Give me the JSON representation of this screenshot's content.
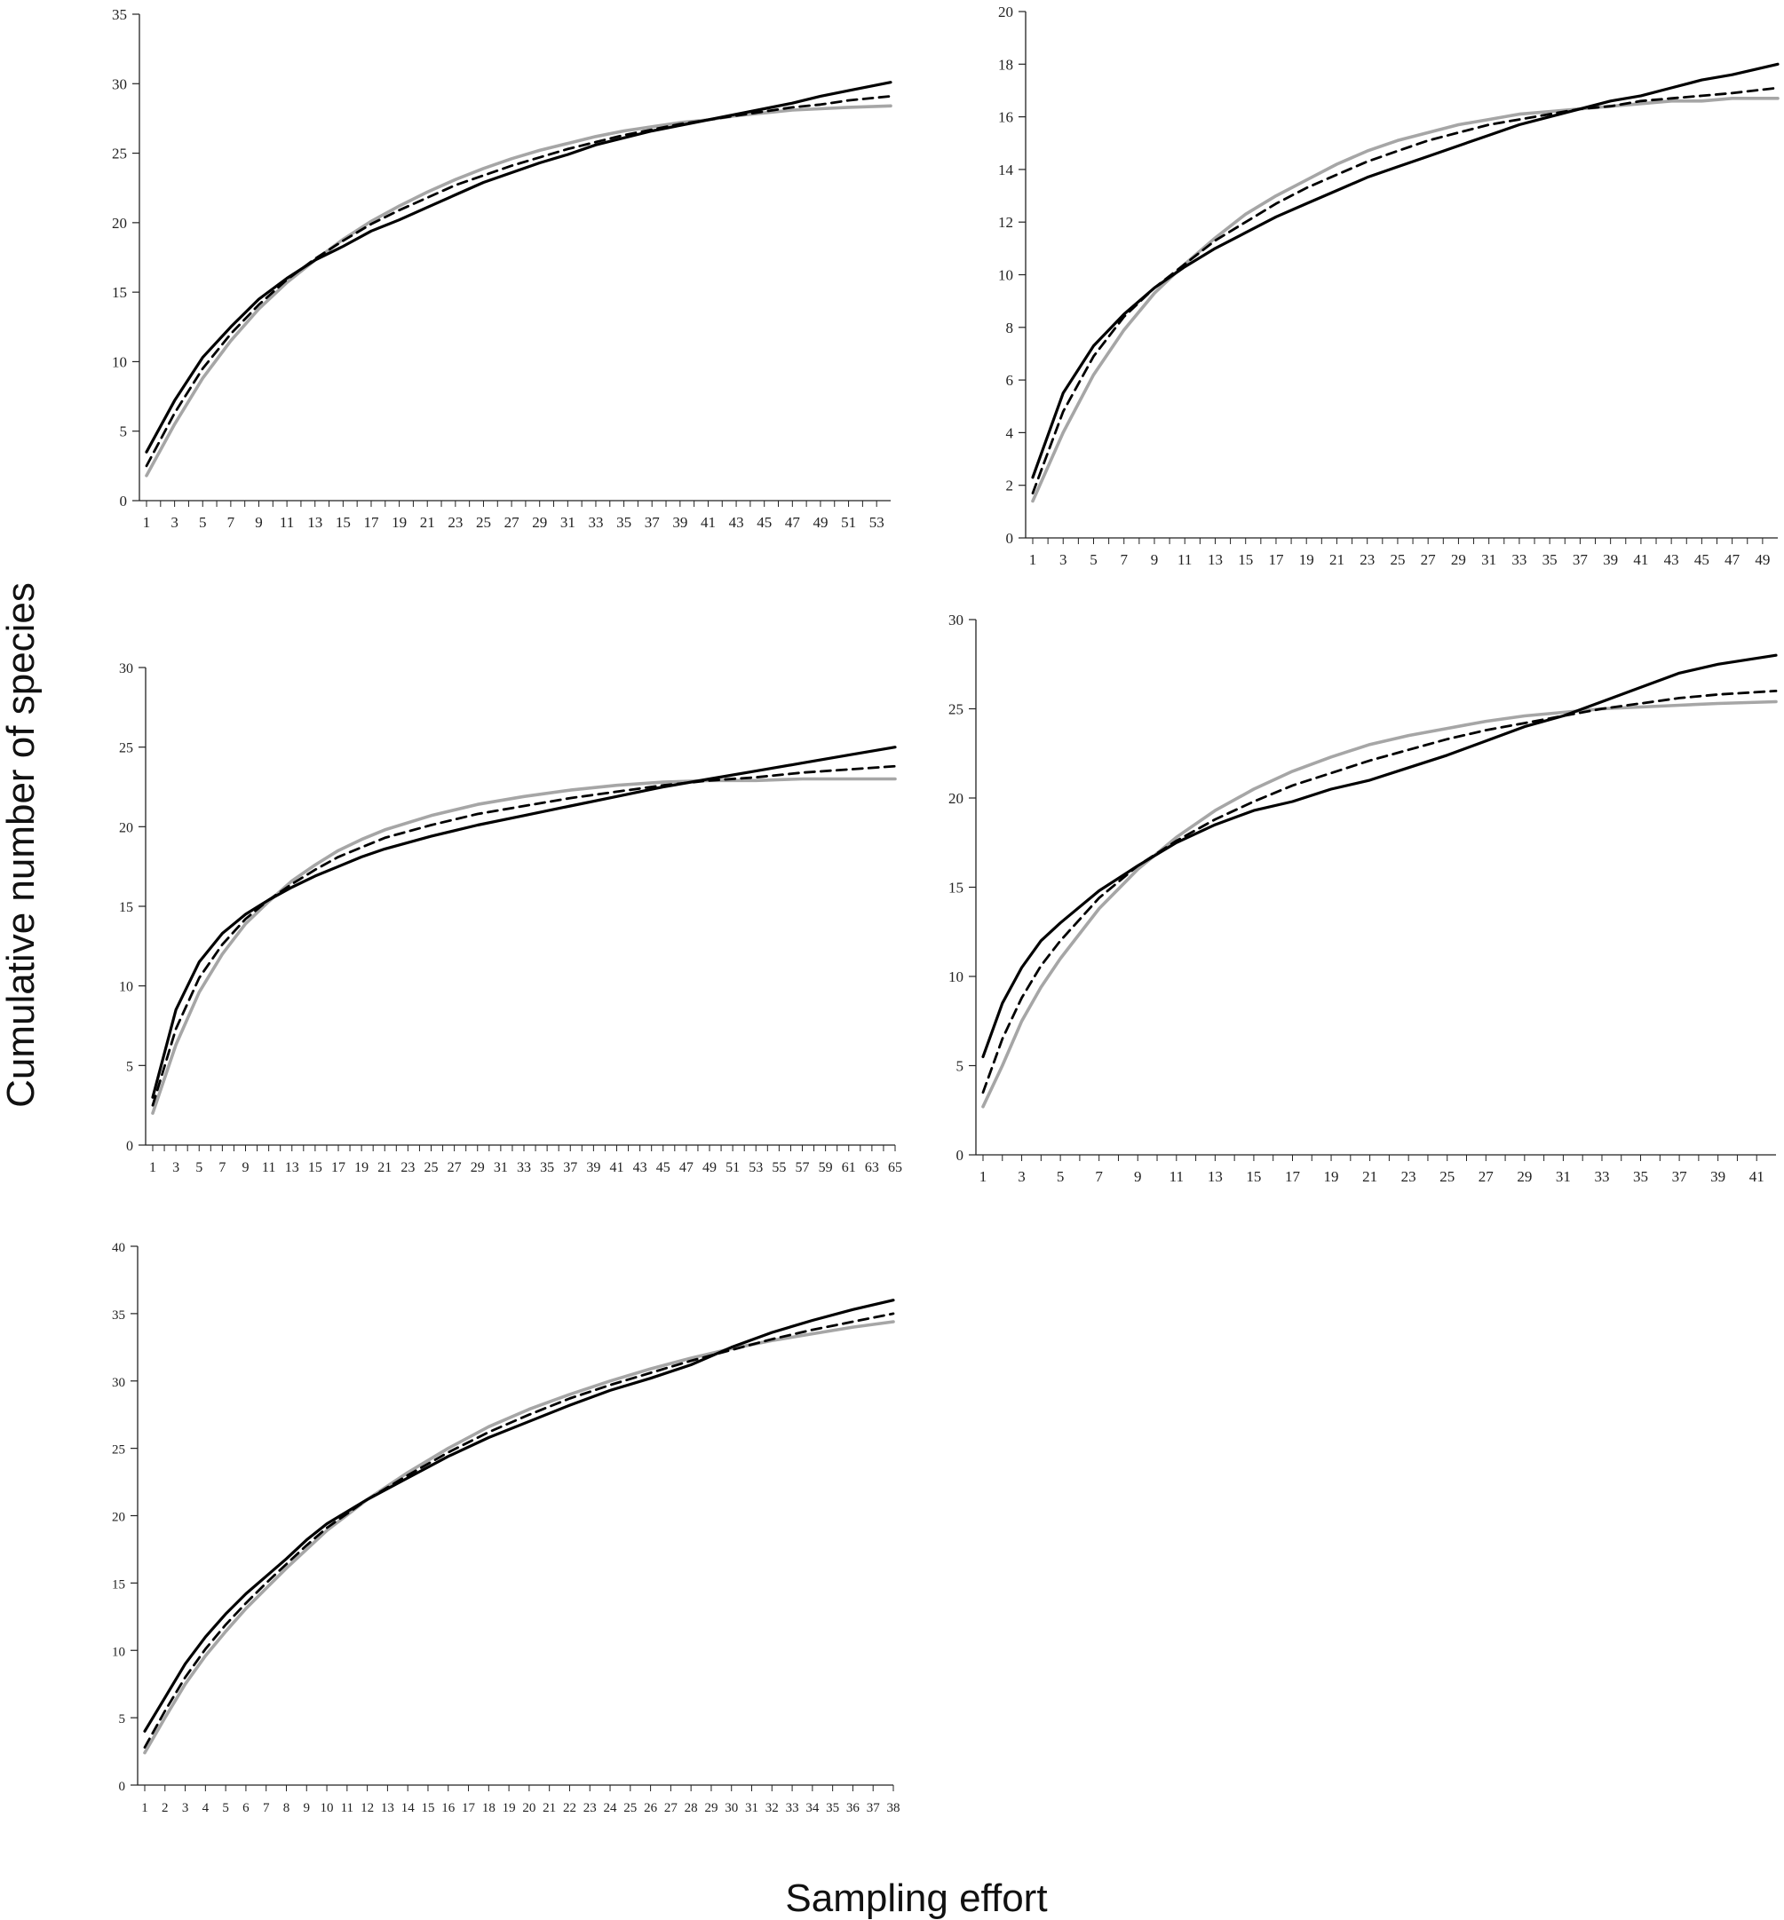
{
  "figure": {
    "ylabel": "Cumulative number of species",
    "xlabel": "Sampling effort"
  },
  "chart_data": [
    {
      "type": "line",
      "ylim": [
        0,
        35
      ],
      "yticks": [
        0,
        5,
        10,
        15,
        20,
        25,
        30,
        35
      ],
      "xlim": [
        1,
        54
      ],
      "xtick_step": 2,
      "xtick_last": 53,
      "series": [
        {
          "style": "solid-black",
          "x": [
            1,
            3,
            5,
            7,
            9,
            11,
            13,
            15,
            17,
            19,
            21,
            23,
            25,
            27,
            29,
            31,
            33,
            35,
            37,
            39,
            41,
            43,
            45,
            47,
            49,
            51,
            54
          ],
          "values": [
            3.5,
            7.2,
            10.3,
            12.5,
            14.5,
            16.0,
            17.3,
            18.3,
            19.4,
            20.2,
            21.1,
            22.0,
            22.9,
            23.6,
            24.3,
            24.9,
            25.6,
            26.1,
            26.6,
            27.0,
            27.4,
            27.8,
            28.2,
            28.6,
            29.1,
            29.5,
            30.1
          ]
        },
        {
          "style": "dashed-black",
          "x": [
            1,
            3,
            5,
            7,
            9,
            11,
            13,
            15,
            17,
            19,
            21,
            23,
            25,
            27,
            29,
            31,
            33,
            35,
            37,
            39,
            41,
            43,
            45,
            47,
            49,
            51,
            54
          ],
          "values": [
            2.5,
            6.3,
            9.5,
            12.0,
            14.1,
            15.9,
            17.4,
            18.7,
            19.9,
            20.9,
            21.8,
            22.7,
            23.4,
            24.1,
            24.7,
            25.3,
            25.8,
            26.3,
            26.7,
            27.1,
            27.4,
            27.7,
            28.0,
            28.3,
            28.5,
            28.8,
            29.1
          ]
        },
        {
          "style": "solid-gray",
          "x": [
            1,
            3,
            5,
            7,
            9,
            11,
            13,
            15,
            17,
            19,
            21,
            23,
            25,
            27,
            29,
            31,
            33,
            35,
            37,
            39,
            41,
            43,
            45,
            47,
            49,
            51,
            54
          ],
          "values": [
            1.8,
            5.5,
            8.8,
            11.5,
            13.8,
            15.7,
            17.3,
            18.8,
            20.1,
            21.2,
            22.2,
            23.1,
            23.9,
            24.6,
            25.2,
            25.7,
            26.2,
            26.6,
            26.9,
            27.2,
            27.4,
            27.7,
            27.9,
            28.1,
            28.2,
            28.3,
            28.4
          ]
        }
      ]
    },
    {
      "type": "line",
      "ylim": [
        0,
        20
      ],
      "yticks": [
        0,
        2,
        4,
        6,
        8,
        10,
        12,
        14,
        16,
        18,
        20
      ],
      "xlim": [
        1,
        50
      ],
      "xtick_step": 2,
      "xtick_last": 49,
      "series": [
        {
          "style": "solid-black",
          "x": [
            1,
            3,
            5,
            7,
            9,
            11,
            13,
            15,
            17,
            19,
            21,
            23,
            25,
            27,
            29,
            31,
            33,
            35,
            37,
            39,
            41,
            43,
            45,
            47,
            50
          ],
          "values": [
            2.3,
            5.5,
            7.3,
            8.5,
            9.5,
            10.3,
            11.0,
            11.6,
            12.2,
            12.7,
            13.2,
            13.7,
            14.1,
            14.5,
            14.9,
            15.3,
            15.7,
            16.0,
            16.3,
            16.6,
            16.8,
            17.1,
            17.4,
            17.6,
            18.0
          ]
        },
        {
          "style": "dashed-black",
          "x": [
            1,
            3,
            5,
            7,
            9,
            11,
            13,
            15,
            17,
            19,
            21,
            23,
            25,
            27,
            29,
            31,
            33,
            35,
            37,
            39,
            41,
            43,
            45,
            47,
            50
          ],
          "values": [
            1.7,
            4.8,
            6.9,
            8.4,
            9.5,
            10.4,
            11.3,
            12.0,
            12.7,
            13.3,
            13.8,
            14.3,
            14.7,
            15.1,
            15.4,
            15.7,
            15.9,
            16.1,
            16.3,
            16.4,
            16.6,
            16.7,
            16.8,
            16.9,
            17.1
          ]
        },
        {
          "style": "solid-gray",
          "x": [
            1,
            3,
            5,
            7,
            9,
            11,
            13,
            15,
            17,
            19,
            21,
            23,
            25,
            27,
            29,
            31,
            33,
            35,
            37,
            39,
            41,
            43,
            45,
            47,
            50
          ],
          "values": [
            1.4,
            4.0,
            6.2,
            7.9,
            9.3,
            10.4,
            11.4,
            12.3,
            13.0,
            13.6,
            14.2,
            14.7,
            15.1,
            15.4,
            15.7,
            15.9,
            16.1,
            16.2,
            16.3,
            16.4,
            16.5,
            16.6,
            16.6,
            16.7,
            16.7
          ]
        }
      ]
    },
    {
      "type": "line",
      "ylim": [
        0,
        30
      ],
      "yticks": [
        0,
        5,
        10,
        15,
        20,
        25,
        30
      ],
      "xlim": [
        1,
        65
      ],
      "xtick_step": 2,
      "xtick_last": 65,
      "series": [
        {
          "style": "solid-black",
          "x": [
            1,
            3,
            5,
            7,
            9,
            11,
            13,
            15,
            17,
            19,
            21,
            25,
            29,
            33,
            37,
            41,
            45,
            49,
            53,
            57,
            61,
            65
          ],
          "values": [
            3.0,
            8.5,
            11.5,
            13.3,
            14.5,
            15.4,
            16.2,
            16.9,
            17.5,
            18.1,
            18.6,
            19.4,
            20.1,
            20.7,
            21.3,
            21.9,
            22.5,
            23.0,
            23.5,
            24.0,
            24.5,
            25.0
          ]
        },
        {
          "style": "dashed-black",
          "x": [
            1,
            3,
            5,
            7,
            9,
            11,
            13,
            15,
            17,
            19,
            21,
            25,
            29,
            33,
            37,
            41,
            45,
            49,
            53,
            57,
            61,
            65
          ],
          "values": [
            2.5,
            7.3,
            10.5,
            12.6,
            14.2,
            15.4,
            16.4,
            17.3,
            18.1,
            18.7,
            19.3,
            20.1,
            20.8,
            21.3,
            21.8,
            22.2,
            22.6,
            22.9,
            23.1,
            23.4,
            23.6,
            23.8
          ]
        },
        {
          "style": "solid-gray",
          "x": [
            1,
            3,
            5,
            7,
            9,
            11,
            13,
            15,
            17,
            19,
            21,
            25,
            29,
            33,
            37,
            41,
            45,
            49,
            53,
            57,
            61,
            65
          ],
          "values": [
            2.0,
            6.3,
            9.6,
            12.0,
            13.9,
            15.3,
            16.6,
            17.6,
            18.5,
            19.2,
            19.8,
            20.7,
            21.4,
            21.9,
            22.3,
            22.6,
            22.8,
            22.9,
            22.9,
            23.0,
            23.0,
            23.0
          ]
        }
      ]
    },
    {
      "type": "line",
      "ylim": [
        0,
        30
      ],
      "yticks": [
        0,
        5,
        10,
        15,
        20,
        25,
        30
      ],
      "xlim": [
        1,
        42
      ],
      "xtick_step": 2,
      "xtick_last": 41,
      "series": [
        {
          "style": "solid-black",
          "x": [
            1,
            2,
            3,
            4,
            5,
            7,
            9,
            11,
            13,
            15,
            17,
            19,
            21,
            23,
            25,
            27,
            29,
            31,
            33,
            35,
            37,
            39,
            42
          ],
          "values": [
            5.5,
            8.5,
            10.5,
            12.0,
            13.0,
            14.8,
            16.2,
            17.5,
            18.5,
            19.3,
            19.8,
            20.5,
            21.0,
            21.7,
            22.4,
            23.2,
            24.0,
            24.6,
            25.4,
            26.2,
            27.0,
            27.5,
            28.0
          ]
        },
        {
          "style": "dashed-black",
          "x": [
            1,
            2,
            3,
            4,
            5,
            7,
            9,
            11,
            13,
            15,
            17,
            19,
            21,
            23,
            25,
            27,
            29,
            31,
            33,
            35,
            37,
            39,
            42
          ],
          "values": [
            3.5,
            6.5,
            8.8,
            10.6,
            12.0,
            14.4,
            16.2,
            17.6,
            18.8,
            19.8,
            20.7,
            21.4,
            22.1,
            22.7,
            23.3,
            23.8,
            24.2,
            24.6,
            25.0,
            25.3,
            25.6,
            25.8,
            26.0
          ]
        },
        {
          "style": "solid-gray",
          "x": [
            1,
            2,
            3,
            4,
            5,
            7,
            9,
            11,
            13,
            15,
            17,
            19,
            21,
            23,
            25,
            27,
            29,
            31,
            33,
            35,
            37,
            39,
            42
          ],
          "values": [
            2.7,
            5.0,
            7.5,
            9.4,
            11.0,
            13.8,
            16.0,
            17.8,
            19.3,
            20.5,
            21.5,
            22.3,
            23.0,
            23.5,
            23.9,
            24.3,
            24.6,
            24.8,
            25.0,
            25.1,
            25.2,
            25.3,
            25.4
          ]
        }
      ]
    },
    {
      "type": "line",
      "ylim": [
        0,
        40
      ],
      "yticks": [
        0,
        5,
        10,
        15,
        20,
        25,
        30,
        35,
        40
      ],
      "xlim": [
        1,
        38
      ],
      "xtick_step": 1,
      "xtick_last": 38,
      "series": [
        {
          "style": "solid-black",
          "x": [
            1,
            2,
            3,
            4,
            5,
            6,
            7,
            8,
            9,
            10,
            12,
            14,
            16,
            18,
            20,
            22,
            24,
            26,
            28,
            30,
            32,
            34,
            36,
            38
          ],
          "values": [
            4.0,
            6.5,
            9.0,
            11.0,
            12.7,
            14.2,
            15.5,
            16.8,
            18.2,
            19.4,
            21.2,
            22.8,
            24.4,
            25.8,
            27.0,
            28.2,
            29.3,
            30.2,
            31.2,
            32.5,
            33.6,
            34.5,
            35.3,
            36.0
          ]
        },
        {
          "style": "dashed-black",
          "x": [
            1,
            2,
            3,
            4,
            5,
            6,
            7,
            8,
            9,
            10,
            12,
            14,
            16,
            18,
            20,
            22,
            24,
            26,
            28,
            30,
            32,
            34,
            36,
            38
          ],
          "values": [
            2.8,
            5.5,
            8.0,
            10.1,
            11.9,
            13.5,
            15.0,
            16.4,
            17.8,
            19.1,
            21.2,
            23.0,
            24.7,
            26.2,
            27.5,
            28.7,
            29.7,
            30.6,
            31.5,
            32.3,
            33.1,
            33.8,
            34.4,
            35.0
          ]
        },
        {
          "style": "solid-gray",
          "x": [
            1,
            2,
            3,
            4,
            5,
            6,
            7,
            8,
            9,
            10,
            12,
            14,
            16,
            18,
            20,
            22,
            24,
            26,
            28,
            30,
            32,
            34,
            36,
            38
          ],
          "values": [
            2.4,
            5.0,
            7.5,
            9.6,
            11.4,
            13.1,
            14.6,
            16.1,
            17.5,
            18.9,
            21.2,
            23.2,
            25.0,
            26.6,
            27.9,
            29.0,
            30.0,
            30.9,
            31.7,
            32.4,
            33.0,
            33.5,
            34.0,
            34.4
          ]
        }
      ]
    }
  ]
}
